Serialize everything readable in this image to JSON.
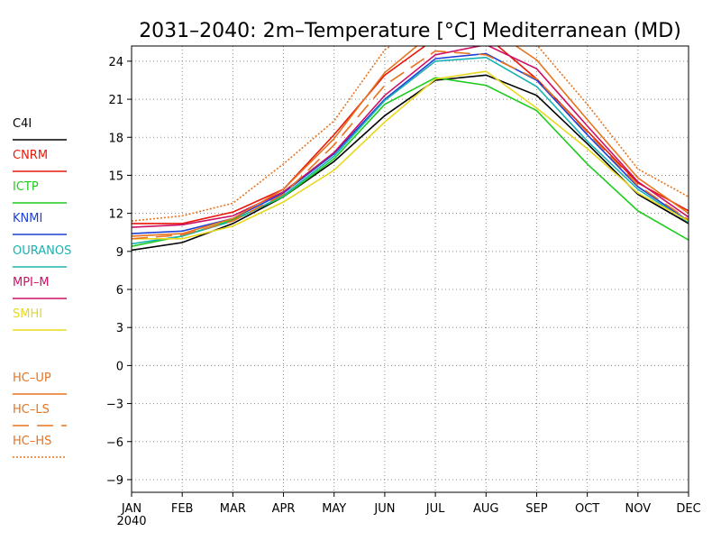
{
  "chart_data": {
    "type": "line",
    "title": "2031–2040: 2m–Temperature [°C] Mediterranean (MD)",
    "categories": [
      "JAN",
      "FEB",
      "MAR",
      "APR",
      "MAY",
      "JUN",
      "JUL",
      "AUG",
      "SEP",
      "OCT",
      "NOV",
      "DEC"
    ],
    "x_sublabel": "2040",
    "ylim": [
      -10,
      25.2
    ],
    "yticks": [
      -9,
      -6,
      -3,
      0,
      3,
      6,
      9,
      12,
      15,
      18,
      21,
      24
    ],
    "grid": true,
    "legend_position": "left",
    "series": [
      {
        "name": "C4I",
        "color": "#000000",
        "dash": "solid",
        "values": [
          9.1,
          9.7,
          11.2,
          13.3,
          16.1,
          19.7,
          22.5,
          22.9,
          21.3,
          17.5,
          13.5,
          11.2
        ]
      },
      {
        "name": "CNRM",
        "color": "#e8190a",
        "dash": "solid",
        "values": [
          11.2,
          11.2,
          12.1,
          13.9,
          18.2,
          22.9,
          25.8,
          26.0,
          22.6,
          18.5,
          14.4,
          12.2
        ]
      },
      {
        "name": "ICTP",
        "color": "#1ecc1e",
        "dash": "solid",
        "values": [
          9.4,
          10.2,
          11.5,
          13.3,
          16.3,
          20.6,
          22.7,
          22.1,
          20.1,
          15.9,
          12.2,
          9.9
        ]
      },
      {
        "name": "KNMI",
        "color": "#1f3fd6",
        "dash": "solid",
        "values": [
          10.4,
          10.6,
          11.6,
          13.6,
          16.7,
          21.0,
          24.2,
          24.6,
          22.5,
          18.2,
          14.1,
          11.4
        ]
      },
      {
        "name": "OURANOS",
        "color": "#1ab2b2",
        "dash": "solid",
        "values": [
          9.6,
          10.2,
          11.4,
          13.4,
          16.5,
          20.9,
          24.0,
          24.3,
          22.0,
          17.7,
          13.9,
          11.3
        ]
      },
      {
        "name": "MPI–M",
        "color": "#cc1166",
        "dash": "solid",
        "values": [
          10.9,
          11.1,
          11.8,
          13.7,
          16.8,
          21.3,
          24.5,
          25.3,
          23.4,
          18.9,
          14.5,
          11.7
        ]
      },
      {
        "name": "SMHI",
        "color": "#e8d81e",
        "dash": "solid",
        "values": [
          10.0,
          10.0,
          11.0,
          12.9,
          15.4,
          19.2,
          22.6,
          23.2,
          20.3,
          17.1,
          13.6,
          11.4
        ]
      },
      {
        "name": "HC–UP",
        "color": "#e8731e",
        "dash": "solid",
        "values": [
          10.2,
          10.4,
          11.6,
          13.9,
          17.9,
          23.1,
          26.4,
          26.8,
          24.1,
          19.4,
          14.8,
          12.0
        ]
      },
      {
        "name": "HC–LS",
        "color": "#e8731e",
        "dash": "long",
        "values": [
          10.0,
          10.3,
          11.4,
          13.5,
          17.4,
          22.1,
          24.8,
          24.5,
          22.6,
          18.4,
          14.2,
          11.5
        ]
      },
      {
        "name": "HC–HS",
        "color": "#e8731e",
        "dash": "dot",
        "values": [
          11.4,
          11.8,
          12.8,
          15.9,
          19.3,
          24.9,
          27.4,
          27.8,
          25.3,
          20.6,
          15.5,
          13.3
        ]
      }
    ]
  }
}
